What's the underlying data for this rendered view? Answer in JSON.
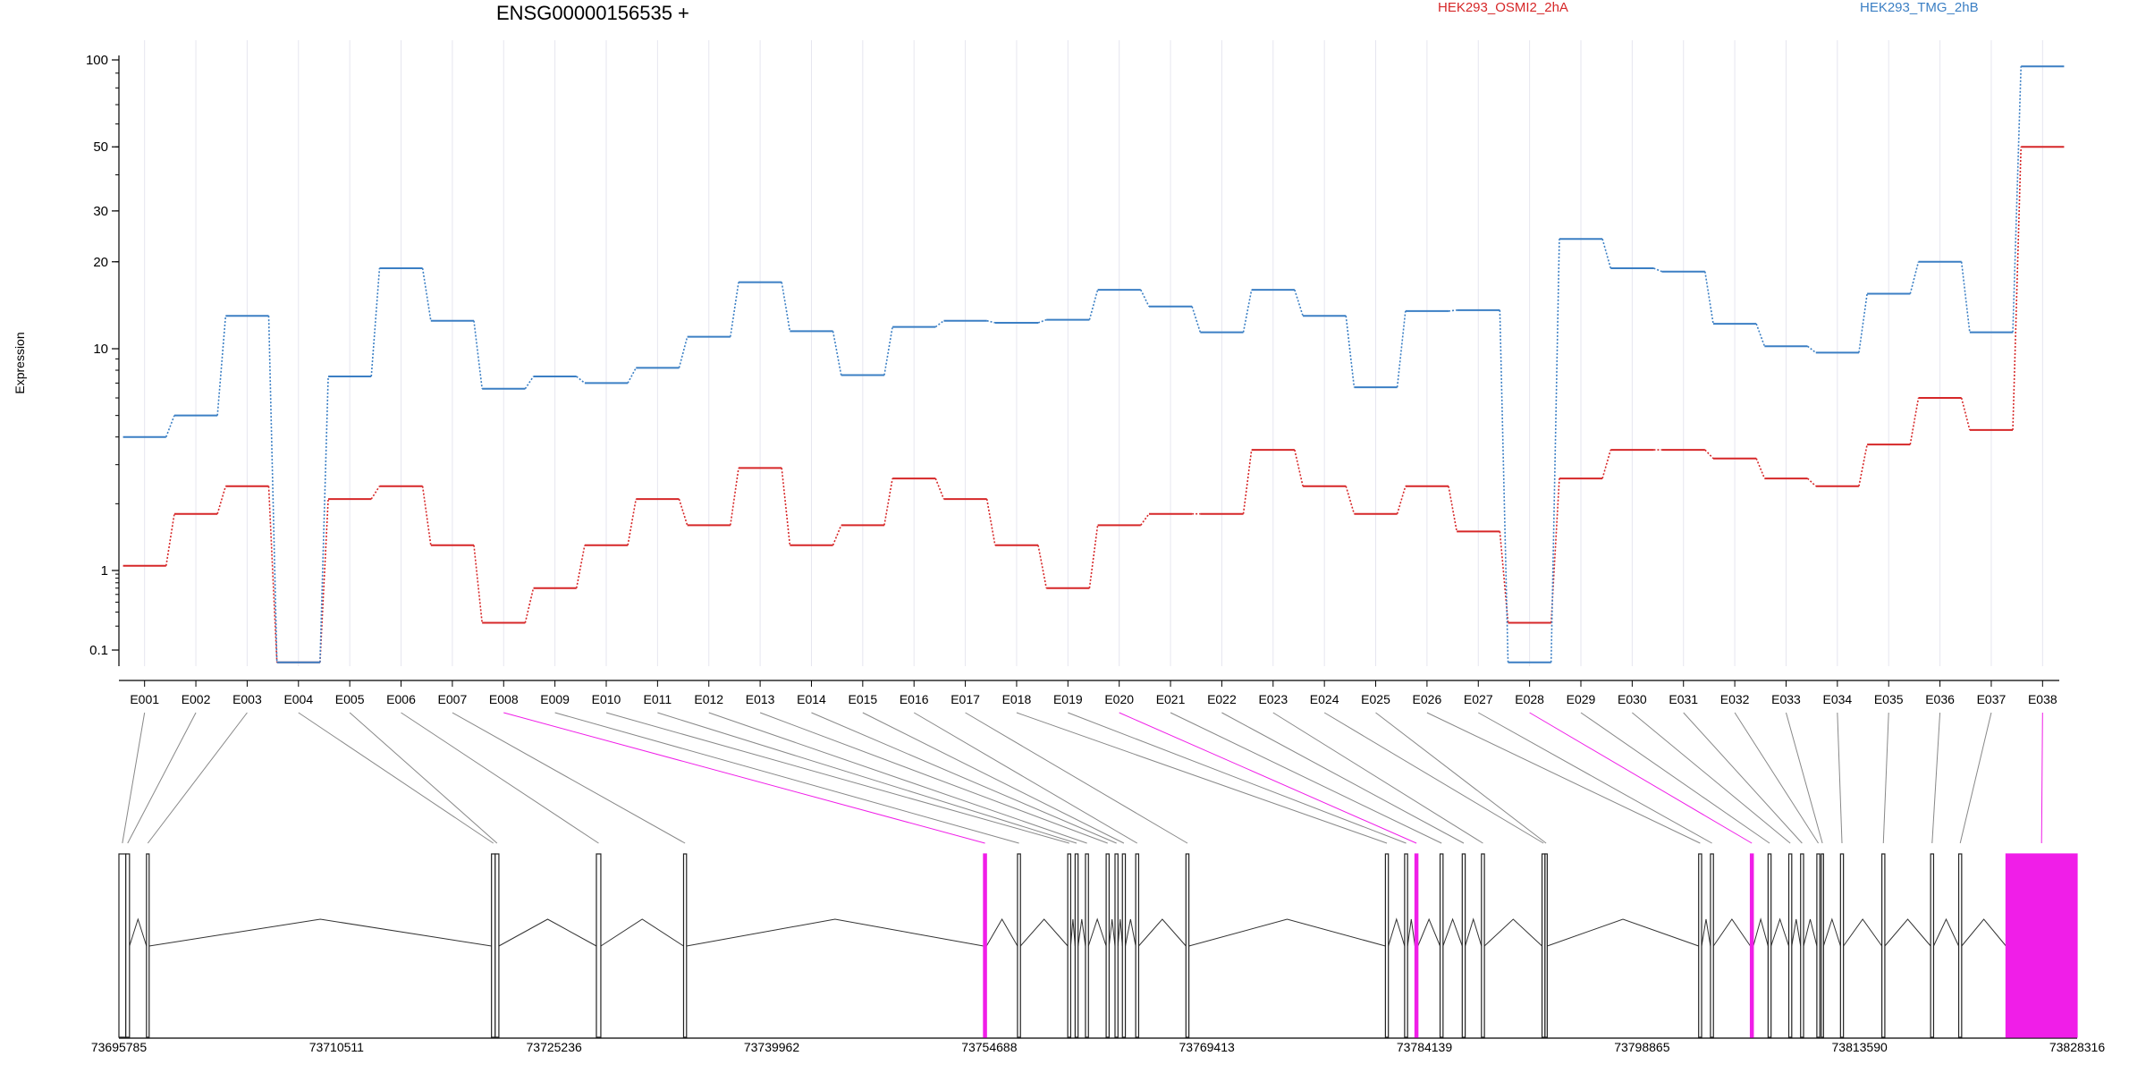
{
  "chart_data": {
    "type": "line",
    "title": "ENSG00000156535 +",
    "ylabel": "Expression",
    "yscale": "log",
    "ylim": [
      0.07,
      100
    ],
    "yticks": [
      0.1,
      1,
      10,
      20,
      30,
      50,
      100
    ],
    "ytick_labels": [
      "0.1",
      "1",
      "10",
      "20",
      "30",
      "50",
      "100"
    ],
    "categories": [
      "E001",
      "E002",
      "E003",
      "E004",
      "E005",
      "E006",
      "E007",
      "E008",
      "E009",
      "E010",
      "E011",
      "E012",
      "E013",
      "E014",
      "E015",
      "E016",
      "E017",
      "E018",
      "E019",
      "E020",
      "E021",
      "E022",
      "E023",
      "E024",
      "E025",
      "E026",
      "E027",
      "E028",
      "E029",
      "E030",
      "E031",
      "E032",
      "E033",
      "E034",
      "E035",
      "E036",
      "E037",
      "E038"
    ],
    "series": [
      {
        "name": "HEK293_OSMI2_2hA",
        "color": "#d62728",
        "values": [
          1.05,
          1.8,
          2.4,
          0.07,
          2.1,
          2.4,
          1.3,
          0.22,
          0.6,
          1.3,
          2.1,
          1.6,
          2.9,
          1.3,
          1.6,
          2.6,
          2.1,
          1.3,
          0.6,
          1.6,
          1.8,
          1.8,
          3.5,
          2.4,
          1.8,
          2.4,
          1.5,
          0.22,
          2.6,
          3.5,
          3.5,
          3.2,
          2.6,
          2.4,
          3.7,
          6.0,
          4.3,
          50
        ]
      },
      {
        "name": "HEK293_TMG_2hB",
        "color": "#3b7fc4",
        "values": [
          4.0,
          5.0,
          13.0,
          0.07,
          7.5,
          19.0,
          12.5,
          6.6,
          7.5,
          7.0,
          8.2,
          11.0,
          17.0,
          11.5,
          7.6,
          11.9,
          12.5,
          12.3,
          12.6,
          16.0,
          14.0,
          11.4,
          16.0,
          13.0,
          6.7,
          13.5,
          13.6,
          0.07,
          24.0,
          19.0,
          18.5,
          12.2,
          10.2,
          9.6,
          15.5,
          20.0,
          11.4,
          95
        ]
      }
    ],
    "legend": "top",
    "grid": "vertical",
    "genomic_axis": {
      "ticks": [
        73695785,
        73710511,
        73725236,
        73739962,
        73754688,
        73769413,
        73784139,
        73798865,
        73813590,
        73828316
      ],
      "tick_labels": [
        "73695785",
        "73710511",
        "73725236",
        "73739962",
        "73754688",
        "73769413",
        "73784139",
        "73798865",
        "73813590",
        "73828316"
      ],
      "exons": [
        {
          "start": 73695785,
          "end": 73696250,
          "highlight": false
        },
        {
          "start": 73696250,
          "end": 73696500,
          "highlight": false
        },
        {
          "start": 73697650,
          "end": 73697830,
          "highlight": false
        },
        {
          "start": 73721000,
          "end": 73721250,
          "highlight": false
        },
        {
          "start": 73721250,
          "end": 73721500,
          "highlight": false
        },
        {
          "start": 73728100,
          "end": 73728400,
          "highlight": false
        },
        {
          "start": 73734000,
          "end": 73734200,
          "highlight": false
        },
        {
          "start": 73754300,
          "end": 73754500,
          "highlight": true
        },
        {
          "start": 73756600,
          "end": 73756800,
          "highlight": false
        },
        {
          "start": 73760000,
          "end": 73760200,
          "highlight": false
        },
        {
          "start": 73760500,
          "end": 73760700,
          "highlight": false
        },
        {
          "start": 73761200,
          "end": 73761400,
          "highlight": false
        },
        {
          "start": 73762600,
          "end": 73762800,
          "highlight": false
        },
        {
          "start": 73763200,
          "end": 73763400,
          "highlight": false
        },
        {
          "start": 73763700,
          "end": 73763900,
          "highlight": false
        },
        {
          "start": 73764600,
          "end": 73764800,
          "highlight": false
        },
        {
          "start": 73768000,
          "end": 73768200,
          "highlight": false
        },
        {
          "start": 73781500,
          "end": 73781700,
          "highlight": false
        },
        {
          "start": 73782800,
          "end": 73783000,
          "highlight": false
        },
        {
          "start": 73783500,
          "end": 73783700,
          "highlight": true
        },
        {
          "start": 73785200,
          "end": 73785400,
          "highlight": false
        },
        {
          "start": 73786700,
          "end": 73786900,
          "highlight": false
        },
        {
          "start": 73788000,
          "end": 73788200,
          "highlight": false
        },
        {
          "start": 73792100,
          "end": 73792300,
          "highlight": false
        },
        {
          "start": 73792300,
          "end": 73792450,
          "highlight": false
        },
        {
          "start": 73802700,
          "end": 73802900,
          "highlight": false
        },
        {
          "start": 73803500,
          "end": 73803700,
          "highlight": false
        },
        {
          "start": 73806200,
          "end": 73806400,
          "highlight": true
        },
        {
          "start": 73807400,
          "end": 73807600,
          "highlight": false
        },
        {
          "start": 73808800,
          "end": 73809000,
          "highlight": false
        },
        {
          "start": 73809600,
          "end": 73809800,
          "highlight": false
        },
        {
          "start": 73810700,
          "end": 73810900,
          "highlight": false
        },
        {
          "start": 73811000,
          "end": 73811150,
          "highlight": false
        },
        {
          "start": 73812300,
          "end": 73812500,
          "highlight": false
        },
        {
          "start": 73815100,
          "end": 73815300,
          "highlight": false
        },
        {
          "start": 73818400,
          "end": 73818600,
          "highlight": false
        },
        {
          "start": 73820300,
          "end": 73820500,
          "highlight": false
        },
        {
          "start": 73823500,
          "end": 73828316,
          "highlight": true
        }
      ]
    }
  },
  "colors": {
    "highlight": "#f01ee8",
    "line_a": "#d62728",
    "line_b": "#3b7fc4"
  }
}
